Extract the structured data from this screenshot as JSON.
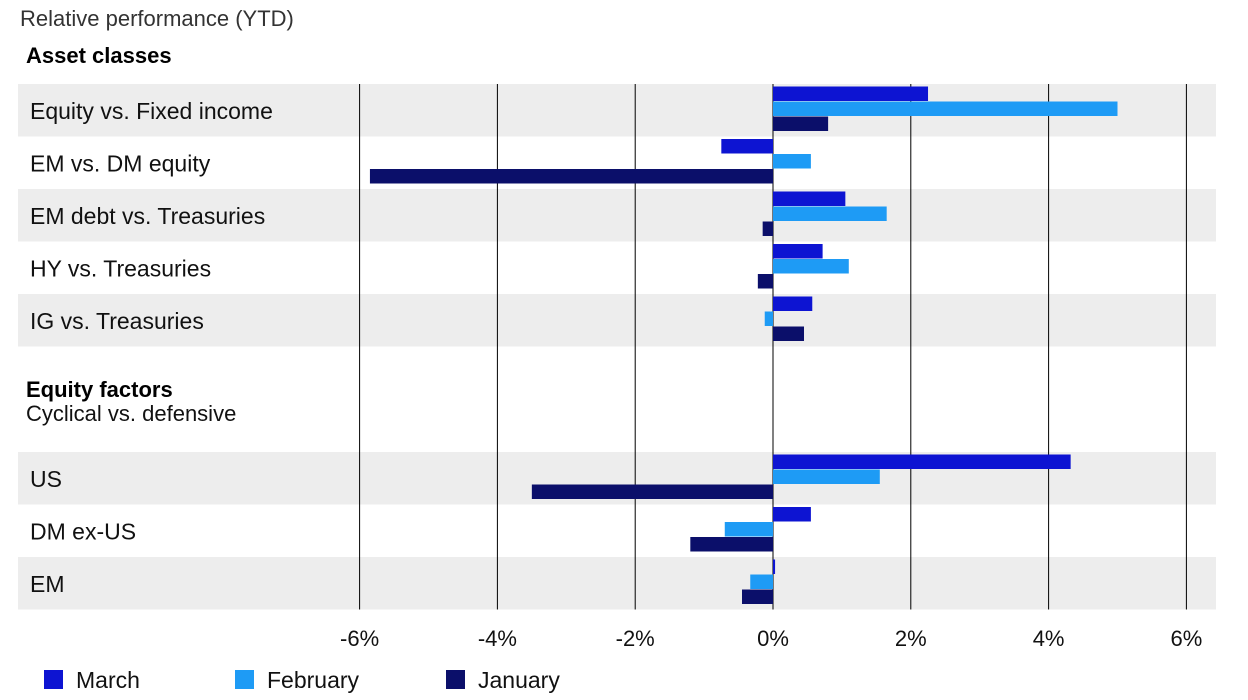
{
  "chart_data": {
    "type": "bar",
    "orientation": "horizontal",
    "title": "Relative performance (YTD)",
    "xlim": [
      -6,
      6
    ],
    "xticks": [
      -6,
      -4,
      -2,
      0,
      2,
      4,
      6
    ],
    "tick_suffix": "%",
    "grid": "vertical",
    "legend_position": "bottom-left",
    "series": [
      {
        "name": "March",
        "color": "#0D14D2"
      },
      {
        "name": "February",
        "color": "#1E9BF5"
      },
      {
        "name": "January",
        "color": "#0B0F6A"
      }
    ],
    "groups": [
      {
        "title": "Asset classes",
        "subtitle": "",
        "rows": [
          {
            "label": "Equity vs. Fixed income",
            "values": [
              2.25,
              5.0,
              0.8
            ]
          },
          {
            "label": "EM vs. DM equity",
            "values": [
              -0.75,
              0.55,
              -5.85
            ]
          },
          {
            "label": "EM debt vs. Treasuries",
            "values": [
              1.05,
              1.65,
              -0.15
            ]
          },
          {
            "label": "HY vs. Treasuries",
            "values": [
              0.72,
              1.1,
              -0.22
            ]
          },
          {
            "label": "IG vs. Treasuries",
            "values": [
              0.57,
              -0.12,
              0.45
            ]
          }
        ]
      },
      {
        "title": "Equity factors",
        "subtitle": "Cyclical vs. defensive",
        "rows": [
          {
            "label": "US",
            "values": [
              4.32,
              1.55,
              -3.5
            ]
          },
          {
            "label": "DM ex-US",
            "values": [
              0.55,
              -0.7,
              -1.2
            ]
          },
          {
            "label": "EM",
            "values": [
              0.03,
              -0.33,
              -0.45
            ]
          }
        ]
      }
    ]
  }
}
